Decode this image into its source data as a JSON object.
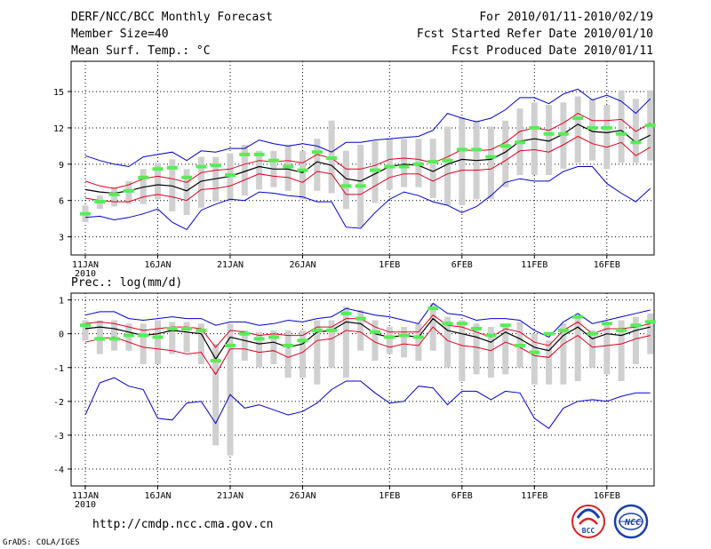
{
  "header": {
    "title": "DERF/NCC/BCC Monthly Forecast",
    "member_size": "Member Size=40",
    "variable": "Mean Surf. Temp.: °C",
    "period": "For 2010/01/11-2010/02/19",
    "started": "Fcst Started Refer Date 2010/01/10",
    "produced": "Fcst Produced Date 2010/01/11"
  },
  "footer": {
    "url": "http://cmdp.ncc.cma.gov.cn",
    "grads": "GrADS: COLA/IGES",
    "logo_bcc": "BCC",
    "logo_ncc": "NCC"
  },
  "colors": {
    "envelope": "#0000cc",
    "spread": "#e0001e",
    "mean": "#000000",
    "observed": "#55ee55",
    "box": "#d0d0d0",
    "grid": "#000000"
  },
  "x_ticks": [
    {
      "day": 1,
      "label": "11JAN",
      "sub": "2010"
    },
    {
      "day": 6,
      "label": "16JAN",
      "sub": ""
    },
    {
      "day": 11,
      "label": "21JAN",
      "sub": ""
    },
    {
      "day": 16,
      "label": "26JAN",
      "sub": ""
    },
    {
      "day": 22,
      "label": "1FEB",
      "sub": ""
    },
    {
      "day": 27,
      "label": "6FEB",
      "sub": ""
    },
    {
      "day": 32,
      "label": "11FEB",
      "sub": ""
    },
    {
      "day": 37,
      "label": "16FEB",
      "sub": ""
    }
  ],
  "chart_data": [
    {
      "type": "box-line",
      "title": "Mean Surf. Temp.: °C",
      "x": [
        1,
        2,
        3,
        4,
        5,
        6,
        7,
        8,
        9,
        10,
        11,
        12,
        13,
        14,
        15,
        16,
        17,
        18,
        19,
        20,
        21,
        22,
        23,
        24,
        25,
        26,
        27,
        28,
        29,
        30,
        31,
        32,
        33,
        34,
        35,
        36,
        37,
        38,
        39,
        40
      ],
      "ylim": [
        1.5,
        17.5
      ],
      "yticks": [
        3,
        6,
        9,
        12,
        15
      ],
      "series": [
        {
          "name": "max",
          "values": [
            9.7,
            9.3,
            9.0,
            8.8,
            9.6,
            9.8,
            10.0,
            9.3,
            10.1,
            10.0,
            10.3,
            10.3,
            11.0,
            10.7,
            10.5,
            10.7,
            10.5,
            10.0,
            10.8,
            10.8,
            11.0,
            11.1,
            11.2,
            11.3,
            11.8,
            13.2,
            12.8,
            12.5,
            12.8,
            13.5,
            14.5,
            14.5,
            14.0,
            14.8,
            15.2,
            14.3,
            14.7,
            14.2,
            13.2,
            14.4
          ]
        },
        {
          "name": "upper",
          "values": [
            7.6,
            7.2,
            7.0,
            7.3,
            7.8,
            8.0,
            7.8,
            7.5,
            8.3,
            8.5,
            8.6,
            9.0,
            9.3,
            9.2,
            9.3,
            9.1,
            9.8,
            9.5,
            8.6,
            8.6,
            8.9,
            9.4,
            9.5,
            9.4,
            9.1,
            9.6,
            10.2,
            10.1,
            10.2,
            10.8,
            11.7,
            12.0,
            11.8,
            12.4,
            13.2,
            12.6,
            12.6,
            12.7,
            11.7,
            12.4
          ]
        },
        {
          "name": "mean",
          "values": [
            6.9,
            6.7,
            6.6,
            6.8,
            7.1,
            7.3,
            7.2,
            6.8,
            7.6,
            7.8,
            8.0,
            8.4,
            8.8,
            8.6,
            8.6,
            8.3,
            9.2,
            8.9,
            7.8,
            7.6,
            8.2,
            8.8,
            9.0,
            8.9,
            8.4,
            9.0,
            9.4,
            9.3,
            9.4,
            10.0,
            10.9,
            11.1,
            10.9,
            11.5,
            12.3,
            11.7,
            11.6,
            11.8,
            10.8,
            11.4
          ]
        },
        {
          "name": "lower",
          "values": [
            6.2,
            6.0,
            5.9,
            5.9,
            6.3,
            6.5,
            6.3,
            6.0,
            6.9,
            7.0,
            7.2,
            7.7,
            8.2,
            8.0,
            7.9,
            7.5,
            8.4,
            8.2,
            6.5,
            6.5,
            7.2,
            7.9,
            8.2,
            8.2,
            7.6,
            8.2,
            8.5,
            8.5,
            8.6,
            9.3,
            10.1,
            10.2,
            10.0,
            10.6,
            11.3,
            10.7,
            10.4,
            10.8,
            9.7,
            10.4
          ]
        },
        {
          "name": "min",
          "values": [
            4.6,
            4.7,
            4.4,
            4.6,
            4.9,
            5.3,
            4.2,
            3.6,
            5.2,
            5.7,
            6.1,
            6.0,
            6.7,
            6.6,
            6.4,
            6.3,
            5.9,
            5.9,
            3.8,
            3.7,
            5.0,
            6.1,
            6.7,
            6.4,
            5.9,
            5.6,
            5.0,
            5.5,
            6.4,
            7.5,
            7.8,
            7.6,
            7.6,
            8.4,
            8.8,
            8.8,
            7.4,
            6.6,
            5.9,
            7.0
          ]
        },
        {
          "name": "box_low",
          "values": [
            4.2,
            5.3,
            5.5,
            5.7,
            5.7,
            6.1,
            5.1,
            4.8,
            5.4,
            5.9,
            5.9,
            6.4,
            6.9,
            7.1,
            6.8,
            6.1,
            6.8,
            6.6,
            5.3,
            3.8,
            5.8,
            6.9,
            7.1,
            7.1,
            6.2,
            5.6,
            5.6,
            6.1,
            6.1,
            7.1,
            8.1,
            8.1,
            8.1,
            8.6,
            9.1,
            9.3,
            8.6,
            9.1,
            9.1,
            9.3
          ]
        },
        {
          "name": "box_high",
          "values": [
            5.6,
            6.4,
            7.1,
            7.6,
            8.6,
            9.1,
            9.4,
            8.6,
            9.6,
            9.6,
            9.9,
            10.6,
            10.1,
            10.1,
            10.6,
            10.1,
            11.1,
            12.6,
            10.1,
            10.6,
            10.9,
            11.1,
            11.1,
            11.1,
            11.1,
            12.1,
            12.9,
            12.6,
            12.1,
            12.6,
            13.6,
            14.1,
            13.9,
            14.1,
            14.6,
            14.4,
            13.9,
            15.1,
            14.4,
            15.1
          ]
        },
        {
          "name": "observed",
          "values": [
            4.9,
            5.9,
            6.5,
            6.8,
            7.9,
            8.6,
            8.7,
            7.9,
            8.8,
            8.9,
            8.1,
            9.8,
            9.8,
            9.3,
            8.8,
            8.5,
            10.0,
            9.5,
            7.2,
            7.2,
            8.5,
            8.8,
            8.8,
            9.0,
            9.2,
            9.3,
            10.2,
            10.2,
            9.6,
            10.5,
            10.8,
            12.0,
            11.5,
            11.5,
            12.8,
            12.0,
            12.0,
            11.5,
            10.8,
            12.2
          ]
        }
      ]
    },
    {
      "type": "box-line",
      "title": "Prec.: log(mm/d)",
      "x": [
        1,
        2,
        3,
        4,
        5,
        6,
        7,
        8,
        9,
        10,
        11,
        12,
        13,
        14,
        15,
        16,
        17,
        18,
        19,
        20,
        21,
        22,
        23,
        24,
        25,
        26,
        27,
        28,
        29,
        30,
        31,
        32,
        33,
        34,
        35,
        36,
        37,
        38,
        39,
        40
      ],
      "ylim": [
        -4.5,
        1.2
      ],
      "yticks": [
        -4,
        -3,
        -2,
        -1,
        0,
        1
      ],
      "series": [
        {
          "name": "max",
          "values": [
            0.55,
            0.65,
            0.65,
            0.45,
            0.4,
            0.45,
            0.5,
            0.45,
            0.45,
            0.25,
            0.35,
            0.35,
            0.25,
            0.3,
            0.4,
            0.35,
            0.45,
            0.5,
            0.75,
            0.65,
            0.55,
            0.5,
            0.4,
            0.3,
            0.9,
            0.6,
            0.55,
            0.4,
            0.45,
            0.45,
            0.4,
            0.1,
            -0.1,
            0.35,
            0.6,
            0.3,
            0.4,
            0.5,
            0.6,
            0.7
          ]
        },
        {
          "name": "upper",
          "values": [
            0.3,
            0.35,
            0.3,
            0.2,
            0.1,
            0.15,
            0.2,
            0.2,
            0.15,
            -0.4,
            0.1,
            0.05,
            -0.05,
            0.0,
            -0.05,
            -0.05,
            0.2,
            0.2,
            0.45,
            0.45,
            0.2,
            0.05,
            0.05,
            0.05,
            0.55,
            0.25,
            0.2,
            0.05,
            -0.1,
            0.15,
            0.05,
            -0.25,
            -0.35,
            0.1,
            0.35,
            0.0,
            0.15,
            0.15,
            0.2,
            0.3
          ]
        },
        {
          "name": "mean",
          "values": [
            0.15,
            0.2,
            0.15,
            0.05,
            -0.05,
            0.0,
            0.1,
            0.05,
            0.0,
            -0.75,
            -0.1,
            -0.2,
            -0.3,
            -0.25,
            -0.4,
            -0.3,
            0.05,
            0.1,
            0.35,
            0.3,
            0.0,
            -0.1,
            -0.05,
            -0.1,
            0.45,
            0.1,
            0.0,
            -0.1,
            -0.25,
            0.05,
            -0.15,
            -0.4,
            -0.5,
            -0.05,
            0.2,
            -0.15,
            0.0,
            -0.05,
            0.1,
            0.2
          ]
        },
        {
          "name": "lower",
          "values": [
            -0.25,
            -0.15,
            -0.1,
            -0.25,
            -0.4,
            -0.45,
            -0.5,
            -0.6,
            -0.55,
            -1.2,
            -0.45,
            -0.45,
            -0.55,
            -0.5,
            -0.7,
            -0.55,
            -0.2,
            -0.15,
            0.1,
            0.05,
            -0.25,
            -0.4,
            -0.3,
            -0.35,
            0.2,
            -0.2,
            -0.35,
            -0.4,
            -0.5,
            -0.25,
            -0.4,
            -0.65,
            -0.7,
            -0.3,
            -0.05,
            -0.4,
            -0.35,
            -0.3,
            -0.15,
            -0.05
          ]
        },
        {
          "name": "min",
          "values": [
            -2.4,
            -1.45,
            -1.3,
            -1.55,
            -1.65,
            -2.5,
            -2.55,
            -2.05,
            -2.0,
            -2.65,
            -1.8,
            -2.2,
            -2.1,
            -2.25,
            -2.4,
            -2.3,
            -2.05,
            -1.65,
            -1.4,
            -1.4,
            -1.75,
            -2.05,
            -2.0,
            -1.55,
            -1.6,
            -2.1,
            -1.7,
            -1.7,
            -1.95,
            -1.7,
            -1.75,
            -2.5,
            -2.8,
            -2.2,
            -2.0,
            -1.95,
            -2.0,
            -1.85,
            -1.75,
            -1.75
          ]
        },
        {
          "name": "box_low",
          "values": [
            -0.2,
            -0.6,
            -0.5,
            -0.5,
            -0.9,
            -0.9,
            -0.6,
            -0.55,
            -0.9,
            -3.3,
            -3.6,
            -0.8,
            -1.0,
            -0.9,
            -1.3,
            -1.3,
            -1.5,
            -1.0,
            -1.3,
            -0.5,
            -0.8,
            -0.6,
            -0.7,
            -0.8,
            -0.5,
            -1.0,
            -1.4,
            -1.2,
            -1.3,
            -1.2,
            -1.0,
            -1.5,
            -1.5,
            -1.5,
            -1.4,
            -1.0,
            -1.2,
            -1.4,
            -0.9,
            -0.6
          ]
        },
        {
          "name": "box_high",
          "values": [
            0.4,
            0.4,
            0.4,
            0.3,
            0.3,
            0.4,
            0.35,
            0.35,
            0.3,
            -0.3,
            0.3,
            0.1,
            0.05,
            0.1,
            0.1,
            0.1,
            0.4,
            0.4,
            0.8,
            0.7,
            0.4,
            0.2,
            0.2,
            0.3,
            0.9,
            0.5,
            0.4,
            0.3,
            0.2,
            0.3,
            0.35,
            0.0,
            -0.2,
            0.3,
            0.5,
            0.1,
            0.3,
            0.4,
            0.5,
            0.6
          ]
        },
        {
          "name": "observed",
          "values": [
            0.25,
            -0.15,
            -0.15,
            -0.05,
            -0.05,
            -0.1,
            0.15,
            0.15,
            0.1,
            -0.8,
            -0.35,
            -0.0,
            -0.15,
            -0.1,
            -0.35,
            -0.2,
            0.1,
            0.1,
            0.6,
            0.45,
            0.05,
            -0.1,
            -0.05,
            -0.1,
            0.75,
            0.3,
            0.3,
            0.15,
            -0.05,
            0.25,
            -0.35,
            -0.55,
            0.0,
            0.1,
            0.5,
            0.0,
            0.3,
            0.1,
            0.25,
            0.35
          ]
        }
      ]
    }
  ]
}
